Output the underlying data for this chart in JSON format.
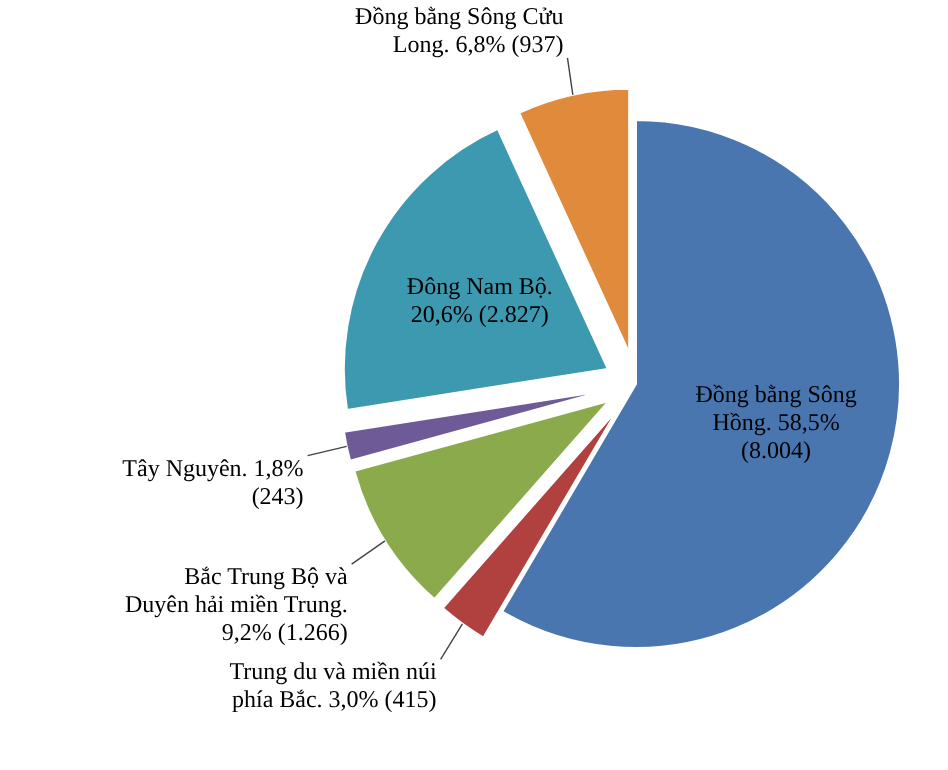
{
  "chart_data": {
    "type": "pie",
    "categories": [
      "Đồng bằng Sông Hồng.",
      "Trung du và miền núi phía Bắc.",
      "Bắc Trung Bộ và Duyên hải miền Trung.",
      "Tây Nguyên.",
      "Đông Nam Bộ.",
      "Đồng bằng Sông Cửu Long."
    ],
    "values": [
      8004,
      415,
      1266,
      243,
      2827,
      937
    ],
    "value_labels": [
      "58,5% (8.004)",
      "3,0% (415)",
      "9,2% (1.266)",
      "1,8% (243)",
      "20,6% (2.827)",
      "6,8% (937)"
    ],
    "colors": [
      "#4a76b0",
      "#b0413e",
      "#8aaa4c",
      "#6e5a96",
      "#3d99b0",
      "#e08a3c"
    ]
  }
}
